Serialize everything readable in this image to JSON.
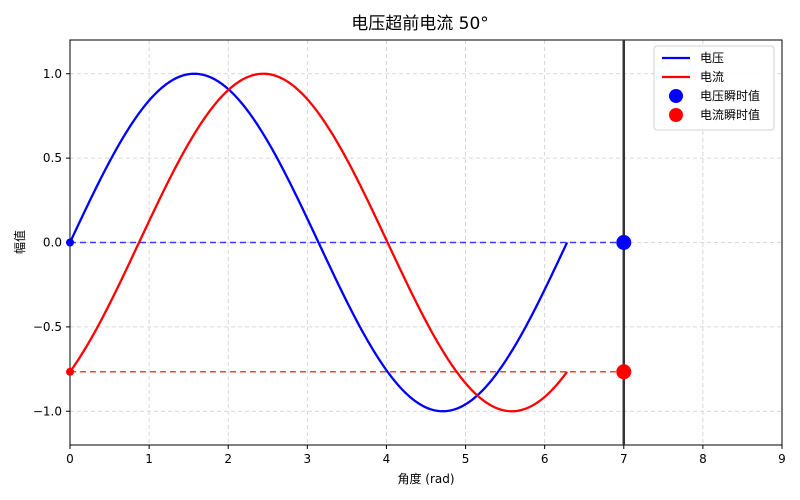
{
  "chart_data": {
    "type": "line",
    "title": "电压超前电流 50°",
    "xlabel": "角度 (rad)",
    "ylabel": "幅值",
    "xlim": [
      0,
      9
    ],
    "ylim": [
      -1.2,
      1.2
    ],
    "x_ticks": [
      0,
      1,
      2,
      3,
      4,
      5,
      6,
      7,
      8,
      9
    ],
    "y_ticks": [
      1.0,
      0.5,
      0.0,
      -0.5,
      -1.0
    ],
    "y_tick_labels": [
      "1.0",
      "0.5",
      "0.0",
      "−0.5",
      "−1.0"
    ],
    "grid": true,
    "legend_position": "top-right",
    "phase_shift_deg": 50,
    "x_range": [
      0,
      6.283
    ],
    "series": [
      {
        "name": "电压",
        "kind": "line",
        "function": "sin(x)",
        "color": "#0000ff"
      },
      {
        "name": "电流",
        "kind": "line",
        "function": "sin(x - 50°)",
        "color": "#ff0000"
      },
      {
        "name": "电压瞬时值",
        "kind": "marker",
        "x": 7,
        "y": 0.0,
        "color": "#0000ff"
      },
      {
        "name": "电流瞬时值",
        "kind": "marker",
        "x": 7,
        "y": -0.766,
        "color": "#ff0000"
      }
    ],
    "reference_lines": [
      {
        "type": "horizontal",
        "y": 0.0,
        "color": "#0000ff",
        "style": "dashed"
      },
      {
        "type": "horizontal",
        "y": -0.766,
        "color": "#ff0000",
        "style": "dashed"
      },
      {
        "type": "vertical",
        "x": 7,
        "color": "#333333",
        "style": "solid"
      }
    ]
  }
}
